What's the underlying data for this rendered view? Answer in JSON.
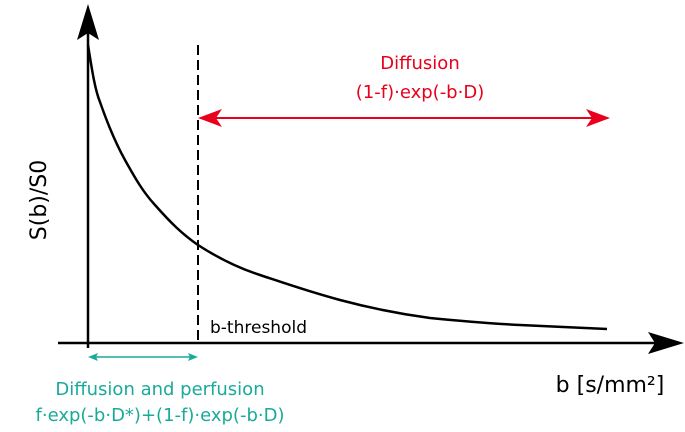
{
  "y_axis": {
    "label": "S(b)/S0"
  },
  "x_axis": {
    "label": "b [s/mm²]"
  },
  "threshold": {
    "label": "b-threshold"
  },
  "diffusion": {
    "title": "Diffusion",
    "formula": "(1-f)·exp(-b·D)"
  },
  "perfusion": {
    "title": "Diffusion and perfusion",
    "formula": "f·exp(-b·D*)+(1-f)·exp(-b·D)"
  }
}
